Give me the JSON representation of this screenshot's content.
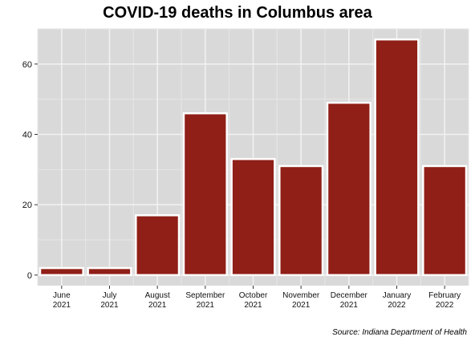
{
  "chart_data": {
    "type": "bar",
    "title": "COVID-19 deaths in Columbus area",
    "source": "Source: Indiana Department of Health",
    "categories": [
      [
        "June",
        "2021"
      ],
      [
        "July",
        "2021"
      ],
      [
        "August",
        "2021"
      ],
      [
        "September",
        "2021"
      ],
      [
        "October",
        "2021"
      ],
      [
        "November",
        "2021"
      ],
      [
        "December",
        "2021"
      ],
      [
        "January",
        "2022"
      ],
      [
        "February",
        "2022"
      ]
    ],
    "values": [
      2,
      2,
      17,
      46,
      33,
      31,
      49,
      67,
      31
    ],
    "ylim": [
      -3,
      70
    ],
    "yticks": [
      0,
      20,
      40,
      60
    ],
    "xlabel": "",
    "ylabel": "",
    "grid": true,
    "legend": "none",
    "colors": {
      "bar": "#8f1f17",
      "bar_outline": "#ffffff",
      "panel": "#d9d9d9",
      "grid_major": "#f2f2f2",
      "grid_minor": "#e6e6e6"
    }
  }
}
